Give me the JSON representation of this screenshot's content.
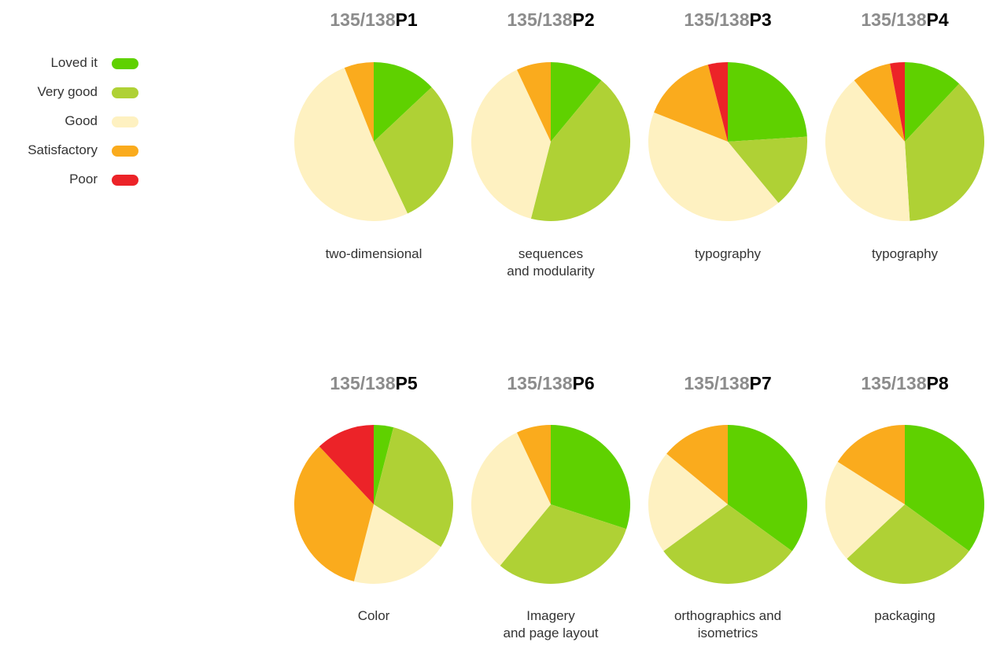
{
  "legend": {
    "items": [
      {
        "label": "Loved it",
        "color": "#5fd100"
      },
      {
        "label": "Very good",
        "color": "#afd135"
      },
      {
        "label": "Good",
        "color": "#fef1c1"
      },
      {
        "label": "Satisfactory",
        "color": "#faab1d"
      },
      {
        "label": "Poor",
        "color": "#ec2328"
      }
    ]
  },
  "chart_data": [
    {
      "type": "pie",
      "title_count": "135/138",
      "title_part": "P1",
      "caption": [
        "two-dimensional"
      ],
      "categories": [
        "Loved it",
        "Very good",
        "Good",
        "Satisfactory",
        "Poor"
      ],
      "values": [
        13,
        30,
        51,
        6,
        0
      ]
    },
    {
      "type": "pie",
      "title_count": "135/138",
      "title_part": "P2",
      "caption": [
        "sequences",
        "and modularity"
      ],
      "categories": [
        "Loved it",
        "Very good",
        "Good",
        "Satisfactory",
        "Poor"
      ],
      "values": [
        11,
        43,
        39,
        7,
        0
      ]
    },
    {
      "type": "pie",
      "title_count": "135/138",
      "title_part": "P3",
      "caption": [
        "typography"
      ],
      "categories": [
        "Loved it",
        "Very good",
        "Good",
        "Satisfactory",
        "Poor"
      ],
      "values": [
        24,
        15,
        42,
        15,
        4
      ]
    },
    {
      "type": "pie",
      "title_count": "135/138",
      "title_part": "P4",
      "caption": [
        "typography"
      ],
      "categories": [
        "Loved it",
        "Very good",
        "Good",
        "Satisfactory",
        "Poor"
      ],
      "values": [
        12,
        37,
        40,
        8,
        3
      ]
    },
    {
      "type": "pie",
      "title_count": "135/138",
      "title_part": "P5",
      "caption": [
        "Color"
      ],
      "categories": [
        "Loved it",
        "Very good",
        "Good",
        "Satisfactory",
        "Poor"
      ],
      "values": [
        4,
        30,
        20,
        34,
        12
      ]
    },
    {
      "type": "pie",
      "title_count": "135/138",
      "title_part": "P6",
      "caption": [
        "Imagery",
        "and page layout"
      ],
      "categories": [
        "Loved it",
        "Very good",
        "Good",
        "Satisfactory",
        "Poor"
      ],
      "values": [
        30,
        31,
        32,
        7,
        0
      ]
    },
    {
      "type": "pie",
      "title_count": "135/138",
      "title_part": "P7",
      "caption": [
        "orthographics and",
        "isometrics"
      ],
      "categories": [
        "Loved it",
        "Very good",
        "Good",
        "Satisfactory",
        "Poor"
      ],
      "values": [
        35,
        30,
        21,
        14,
        0
      ]
    },
    {
      "type": "pie",
      "title_count": "135/138",
      "title_part": "P8",
      "caption": [
        "packaging"
      ],
      "categories": [
        "Loved it",
        "Very good",
        "Good",
        "Satisfactory",
        "Poor"
      ],
      "values": [
        35,
        28,
        21,
        16,
        0
      ]
    }
  ]
}
